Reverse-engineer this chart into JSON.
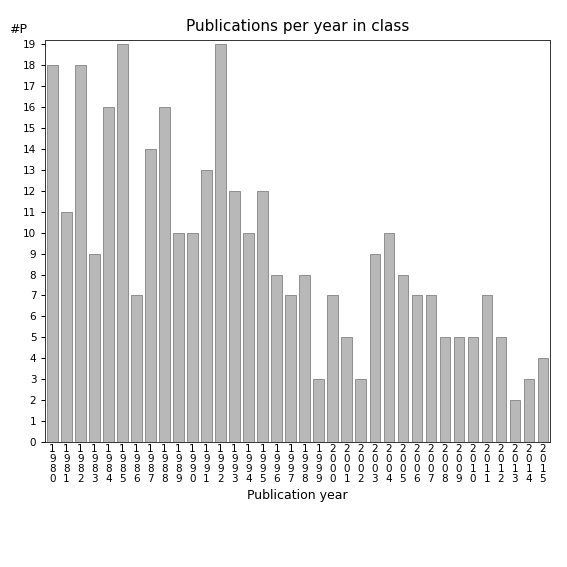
{
  "title": "Publications per year in class",
  "xlabel": "Publication year",
  "ylabel": "#P",
  "years": [
    "1980",
    "1981",
    "1982",
    "1983",
    "1984",
    "1985",
    "1986",
    "1987",
    "1988",
    "1989",
    "1990",
    "1991",
    "1992",
    "1993",
    "1994",
    "1995",
    "1996",
    "1997",
    "1998",
    "1999",
    "2000",
    "2001",
    "2002",
    "2003",
    "2004",
    "2005",
    "2006",
    "2007",
    "2008",
    "2009",
    "2010",
    "2011",
    "2012",
    "2013",
    "2014",
    "2015"
  ],
  "values": [
    18,
    11,
    18,
    9,
    16,
    19,
    7,
    14,
    16,
    10,
    10,
    13,
    19,
    12,
    10,
    12,
    8,
    7,
    8,
    3,
    7,
    5,
    3,
    9,
    10,
    8,
    7,
    7,
    5,
    5,
    5,
    7,
    5,
    2,
    3,
    4
  ],
  "bar_color": "#b8b8b8",
  "bar_edge_color": "#555555",
  "ylim_max": 19,
  "yticks": [
    0,
    1,
    2,
    3,
    4,
    5,
    6,
    7,
    8,
    9,
    10,
    11,
    12,
    13,
    14,
    15,
    16,
    17,
    18,
    19
  ],
  "title_fontsize": 11,
  "axis_label_fontsize": 9,
  "tick_fontsize": 7.5,
  "bar_width": 0.75
}
